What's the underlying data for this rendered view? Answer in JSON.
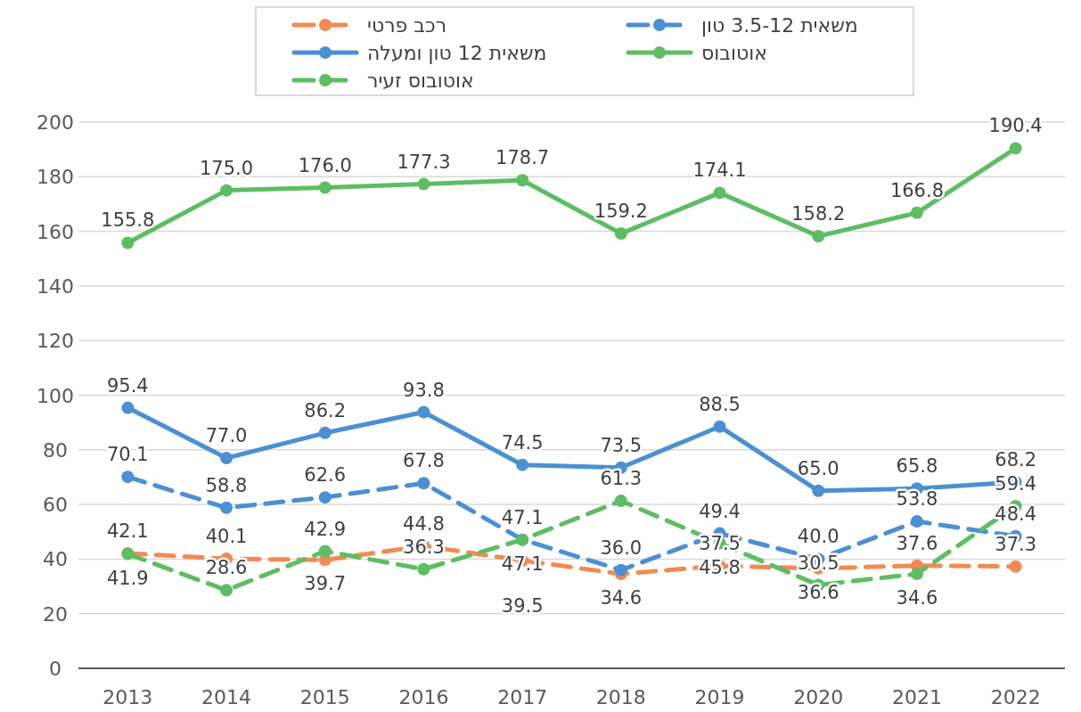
{
  "chart_data": {
    "type": "line",
    "categories": [
      "2013",
      "2014",
      "2015",
      "2016",
      "2017",
      "2018",
      "2019",
      "2020",
      "2021",
      "2022"
    ],
    "series": [
      {
        "name": "רכב פרטי",
        "color": "#f28a52",
        "line_style": "dashed",
        "values": [
          42.1,
          40.1,
          39.7,
          44.8,
          39.5,
          34.6,
          37.5,
          36.6,
          37.6,
          37.3
        ],
        "value_labels": [
          "42.1",
          "40.1",
          "39.7",
          "44.8",
          "39.5",
          "34.6",
          "37.5",
          "36.6",
          "37.6",
          "37.3"
        ]
      },
      {
        "name": "משאית 3.5-12 טון",
        "color": "#4a90d2",
        "line_style": "dashed",
        "values": [
          70.1,
          58.8,
          62.6,
          67.8,
          47.1,
          36.0,
          49.4,
          40.0,
          53.8,
          48.4
        ],
        "value_labels": [
          "70.1",
          "58.8",
          "62.6",
          "67.8",
          "47.1",
          "36.0",
          "49.4",
          "40.0",
          "53.8",
          "48.4"
        ]
      },
      {
        "name": "משאית 12 טון ומעלה",
        "color": "#4a90d2",
        "line_style": "solid",
        "values": [
          95.4,
          77.0,
          86.2,
          93.8,
          74.5,
          73.5,
          88.5,
          65.0,
          65.8,
          68.2
        ],
        "value_labels": [
          "95.4",
          "77.0",
          "86.2",
          "93.8",
          "74.5",
          "73.5",
          "88.5",
          "65.0",
          "65.8",
          "68.2"
        ]
      },
      {
        "name": "אוטובוס",
        "color": "#5dbd62",
        "line_style": "solid",
        "values": [
          155.8,
          175.0,
          176.0,
          177.3,
          178.7,
          159.2,
          174.1,
          158.2,
          166.8,
          190.4
        ],
        "value_labels": [
          "155.8",
          "175.0",
          "176.0",
          "177.3",
          "178.7",
          "159.2",
          "174.1",
          "158.2",
          "166.8",
          "190.4"
        ]
      },
      {
        "name": "אוטובוס זעיר",
        "color": "#5dbd62",
        "line_style": "dashed",
        "values": [
          41.9,
          28.6,
          42.9,
          36.3,
          47.1,
          61.3,
          45.8,
          30.5,
          34.6,
          59.4
        ],
        "value_labels": [
          "41.9",
          "28.6",
          "42.9",
          "36.3",
          "47.1",
          "61.3",
          "45.8",
          "30.5",
          "34.6",
          "59.4"
        ]
      }
    ],
    "ylim": [
      0,
      200
    ],
    "yticks": [
      0,
      20,
      40,
      60,
      80,
      100,
      120,
      140,
      160,
      180,
      200
    ],
    "grid": "y",
    "legend": "top",
    "marker": "circle"
  }
}
